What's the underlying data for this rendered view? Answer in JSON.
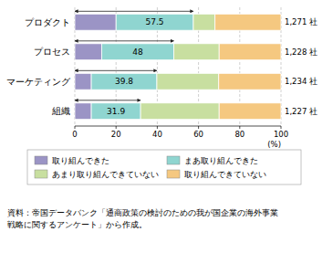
{
  "chart_data": {
    "type": "bar",
    "orientation": "horizontal",
    "stacked": true,
    "categories": [
      "組織",
      "マーケティング",
      "プロセス",
      "プロダクト"
    ],
    "series": [
      {
        "name": "取り組んできた",
        "color": "#9b94c5",
        "values": [
          8.0,
          8.0,
          13.0,
          20.0
        ]
      },
      {
        "name": "まあ取り組んできた",
        "color": "#8fd5d0",
        "values": [
          23.9,
          31.8,
          35.0,
          37.5
        ]
      },
      {
        "name": "あまり取り組んできていない",
        "color": "#c8dfa0",
        "values": [
          38.1,
          30.0,
          22.0,
          10.5
        ]
      },
      {
        "name": "取り組んできていない",
        "color": "#f5c880",
        "values": [
          30.0,
          30.2,
          30.0,
          32.0
        ]
      }
    ],
    "arrow_values": [
      31.9,
      39.8,
      48.0,
      57.5
    ],
    "n_labels": [
      "1,227 社",
      "1,234 社",
      "1,228 社",
      "1,271 社"
    ],
    "xlabel": "(%)",
    "xlim": [
      0,
      100
    ],
    "xticks": [
      0,
      20,
      40,
      60,
      80,
      100
    ],
    "grid": true,
    "legend": "bottom",
    "source": [
      "資料：帝国データバンク「通商政策の検討のための我が国企業の海外事業",
      "戦略に関するアンケート」から作成。"
    ]
  }
}
